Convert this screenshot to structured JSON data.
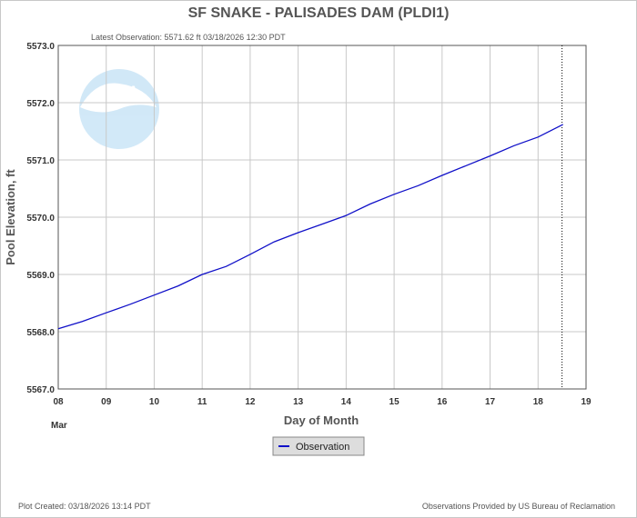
{
  "header": {
    "title": "SF SNAKE - PALISADES DAM  (PLDI1)",
    "latest_observation": "Latest Observation: 5571.62 ft 03/18/2026 12:30 PDT"
  },
  "footer": {
    "plot_created": "Plot Created: 03/18/2026 13:14 PDT",
    "provider": "Observations Provided by US Bureau of Reclamation"
  },
  "logo": {
    "text": "NOAA",
    "icon": "noaa-logo-watermark"
  },
  "colors": {
    "series": "#1010c8",
    "grid": "#c8c8c8",
    "frame": "#555555"
  },
  "chart_data": {
    "type": "line",
    "title": "SF SNAKE - PALISADES DAM  (PLDI1)",
    "xlabel": "Day of Month",
    "x_sublabel": "Mar",
    "ylabel": "Pool Elevation, ft",
    "xlim": [
      8,
      19
    ],
    "ylim": [
      5567.0,
      5573.0
    ],
    "x_ticks": [
      "08",
      "09",
      "10",
      "11",
      "12",
      "13",
      "14",
      "15",
      "16",
      "17",
      "18",
      "19"
    ],
    "y_ticks": [
      "5567.0",
      "5568.0",
      "5569.0",
      "5570.0",
      "5571.0",
      "5572.0",
      "5573.0"
    ],
    "grid": true,
    "legend_position": "bottom-center",
    "current_time_marker": 18.5,
    "series": [
      {
        "name": "Observation",
        "x": [
          8.0,
          8.5,
          9.0,
          9.5,
          10.0,
          10.5,
          11.0,
          11.5,
          12.0,
          12.5,
          13.0,
          13.5,
          14.0,
          14.5,
          15.0,
          15.5,
          16.0,
          16.5,
          17.0,
          17.5,
          18.0,
          18.52
        ],
        "values": [
          5568.05,
          5568.18,
          5568.33,
          5568.48,
          5568.64,
          5568.8,
          5569.0,
          5569.14,
          5569.35,
          5569.57,
          5569.73,
          5569.88,
          5570.03,
          5570.23,
          5570.4,
          5570.55,
          5570.73,
          5570.9,
          5571.07,
          5571.25,
          5571.4,
          5571.62
        ]
      }
    ]
  }
}
